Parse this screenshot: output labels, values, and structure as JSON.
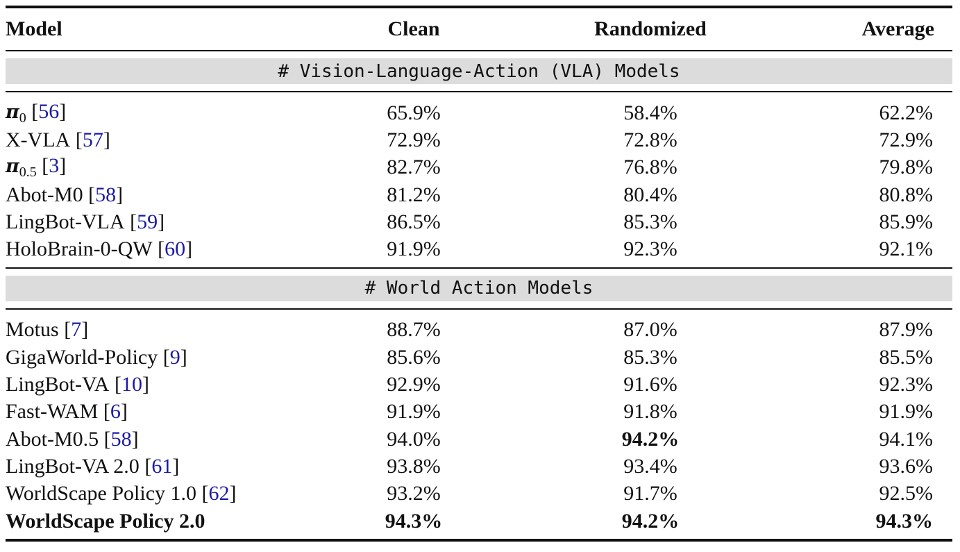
{
  "header": {
    "model": "Model",
    "clean": "Clean",
    "randomized": "Randomized",
    "average": "Average"
  },
  "sections": [
    {
      "title": "# Vision-Language-Action (VLA) Models",
      "rows": [
        {
          "model_pi": "π",
          "model_sub": "0",
          "model": "",
          "cite": "56",
          "clean": "65.9%",
          "randomized": "58.4%",
          "average": "62.2%"
        },
        {
          "model": "X-VLA",
          "cite": "57",
          "clean": "72.9%",
          "randomized": "72.8%",
          "average": "72.9%"
        },
        {
          "model_pi": "π",
          "model_sub": "0.5",
          "model": "",
          "cite": "3",
          "clean": "82.7%",
          "randomized": "76.8%",
          "average": "79.8%"
        },
        {
          "model": "Abot-M0",
          "cite": "58",
          "clean": "81.2%",
          "randomized": "80.4%",
          "average": "80.8%"
        },
        {
          "model": "LingBot-VLA",
          "cite": "59",
          "clean": "86.5%",
          "randomized": "85.3%",
          "average": "85.9%"
        },
        {
          "model": "HoloBrain-0-QW",
          "cite": "60",
          "clean": "91.9%",
          "randomized": "92.3%",
          "average": "92.1%"
        }
      ]
    },
    {
      "title": "# World Action Models",
      "rows": [
        {
          "model": "Motus",
          "cite": "7",
          "clean": "88.7%",
          "randomized": "87.0%",
          "average": "87.9%"
        },
        {
          "model": "GigaWorld-Policy",
          "cite": "9",
          "clean": "85.6%",
          "randomized": "85.3%",
          "average": "85.5%"
        },
        {
          "model": "LingBot-VA",
          "cite": "10",
          "clean": "92.9%",
          "randomized": "91.6%",
          "average": "92.3%"
        },
        {
          "model": "Fast-WAM",
          "cite": "6",
          "clean": "91.9%",
          "randomized": "91.8%",
          "average": "91.9%"
        },
        {
          "model": "Abot-M0.5",
          "cite": "58",
          "clean": "94.0%",
          "randomized": "94.2%",
          "average": "94.1%",
          "bold_randomized": true
        },
        {
          "model": "LingBot-VA 2.0",
          "cite": "61",
          "clean": "93.8%",
          "randomized": "93.4%",
          "average": "93.6%"
        },
        {
          "model": "WorldScape Policy 1.0",
          "cite": "62",
          "clean": "93.2%",
          "randomized": "91.7%",
          "average": "92.5%"
        },
        {
          "model": "WorldScape Policy 2.0",
          "cite": "",
          "clean": "94.3%",
          "randomized": "94.2%",
          "average": "94.3%",
          "bold_all": true
        }
      ]
    }
  ]
}
